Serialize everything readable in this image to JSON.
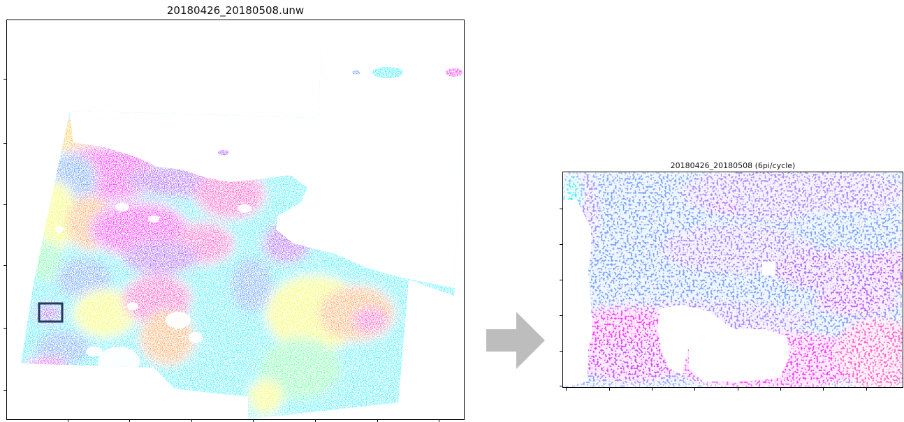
{
  "left_plot": {
    "title": "20180426_20180508.unw"
  },
  "right_plot": {
    "title": "20180426_20180508 (6pi/cycle)"
  },
  "colors": {
    "magenta": "#ff40ff",
    "pink": "#ff66cc",
    "violet": "#b06cff",
    "blue": "#74a8ff",
    "cyan": "#40f0ff",
    "green": "#80ffb0",
    "yellow": "#f4ff60",
    "orange": "#ffb070",
    "highlight_box": "#27385a",
    "arrow": "#bdbdbd"
  }
}
